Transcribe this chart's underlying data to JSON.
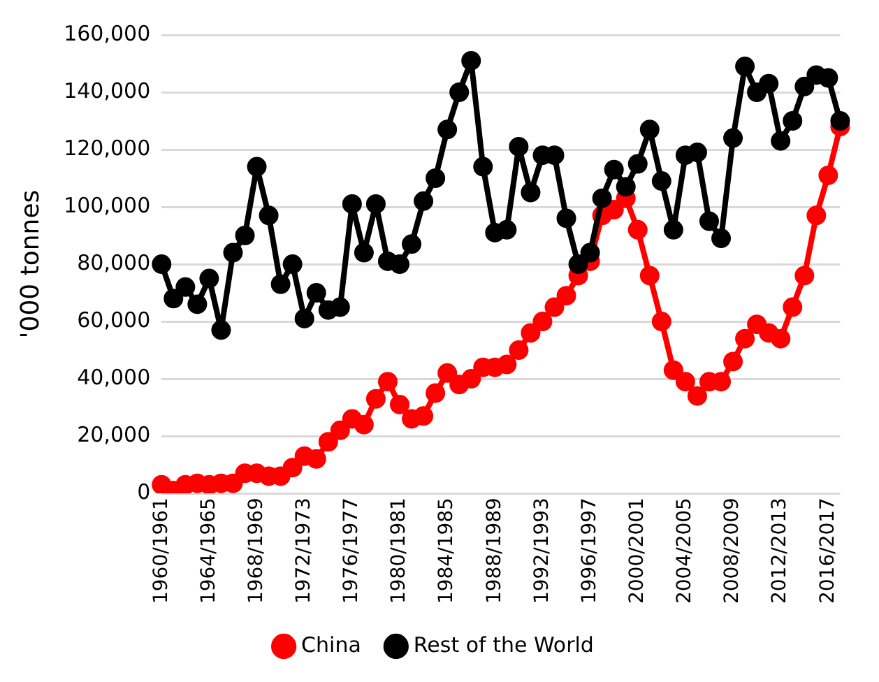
{
  "chart_data": {
    "type": "line",
    "ylabel": "'000 tonnes",
    "categories": [
      "1960/1961",
      null,
      null,
      null,
      "1964/1965",
      null,
      null,
      null,
      "1968/1969",
      null,
      null,
      null,
      "1972/1973",
      null,
      null,
      null,
      "1976/1977",
      null,
      null,
      null,
      "1980/1981",
      null,
      null,
      null,
      "1984/1985",
      null,
      null,
      null,
      "1988/1989",
      null,
      null,
      null,
      "1992/1993",
      null,
      null,
      null,
      "1996/1997",
      null,
      null,
      null,
      "2000/2001",
      null,
      null,
      null,
      "2004/2005",
      null,
      null,
      null,
      "2008/2009",
      null,
      null,
      null,
      "2012/2013",
      null,
      null,
      null,
      "2016/2017",
      null
    ],
    "series": [
      {
        "name": "China",
        "color": "#ff0000",
        "values": [
          3000,
          1000,
          3000,
          3500,
          3000,
          3500,
          3500,
          7000,
          7000,
          6000,
          6000,
          9000,
          13000,
          12000,
          18000,
          22000,
          26000,
          24000,
          33000,
          39000,
          31000,
          26000,
          27000,
          35000,
          42000,
          38000,
          40000,
          44000,
          44000,
          45000,
          50000,
          56000,
          60000,
          65000,
          69000,
          76000,
          81000,
          97000,
          99000,
          103000,
          92000,
          76000,
          60000,
          43000,
          39000,
          34000,
          39000,
          39000,
          46000,
          54000,
          59000,
          56000,
          54000,
          65000,
          76000,
          97000,
          111000,
          128000
        ]
      },
      {
        "name": "Rest of the World",
        "color": "#000000",
        "values": [
          80000,
          68000,
          72000,
          66000,
          75000,
          57000,
          84000,
          90000,
          114000,
          97000,
          73000,
          80000,
          61000,
          70000,
          64000,
          65000,
          101000,
          84000,
          101000,
          81000,
          80000,
          87000,
          102000,
          110000,
          127000,
          140000,
          151000,
          114000,
          91000,
          92000,
          121000,
          105000,
          118000,
          118000,
          96000,
          80000,
          84000,
          103000,
          113000,
          107000,
          115000,
          127000,
          109000,
          92000,
          118000,
          119000,
          95000,
          89000,
          124000,
          149000,
          140000,
          143000,
          123000,
          130000,
          142000,
          146000,
          145000,
          130000
        ]
      }
    ],
    "ylim": [
      0,
      160000
    ],
    "yticks": [
      0,
      {
        "value": 20000,
        "label": "20,000"
      },
      {
        "value": 40000,
        "label": "40,000"
      },
      {
        "value": 60000,
        "label": "60,000"
      },
      {
        "value": 80000,
        "label": "80,000"
      },
      {
        "value": 100000,
        "label": "100,000"
      },
      {
        "value": 120000,
        "label": "120,000"
      },
      {
        "value": 140000,
        "label": "140,000"
      },
      {
        "value": 160000,
        "label": "160,000"
      }
    ],
    "grid": "y",
    "legend": "bottom",
    "marker": "circle",
    "line_style": "solid"
  }
}
